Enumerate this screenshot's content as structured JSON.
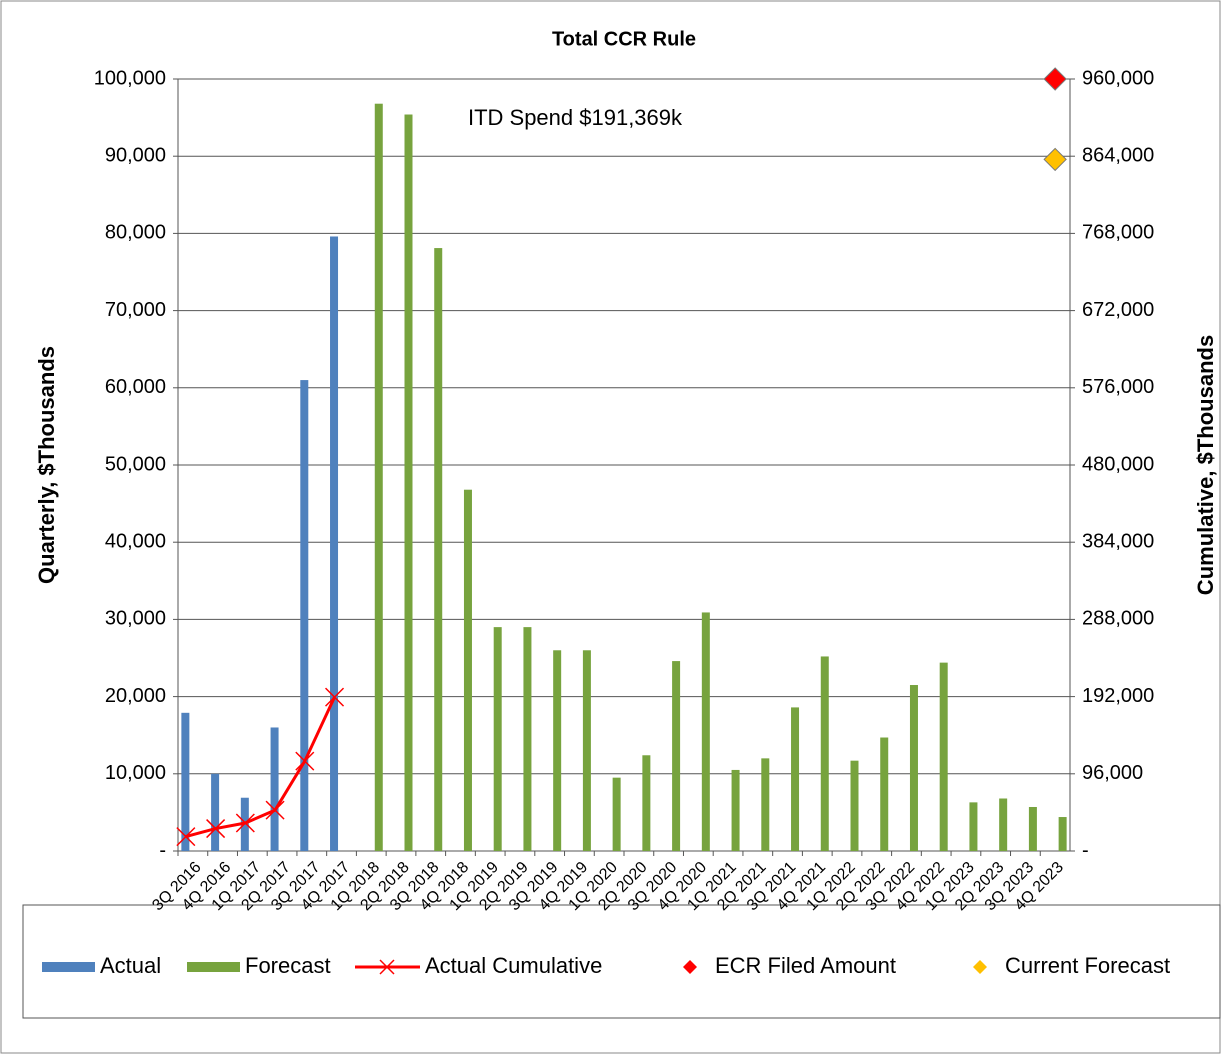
{
  "chart_data": {
    "type": "bar",
    "title": "Total CCR Rule",
    "annotation": "ITD Spend  $191,369k",
    "y_label": "Quarterly, $Thousands",
    "y2_label": "Cumulative, $Thousands",
    "categories": [
      "3Q 2016",
      "4Q 2016",
      "1Q 2017",
      "2Q 2017",
      "3Q 2017",
      "4Q 2017",
      "1Q 2018",
      "2Q 2018",
      "3Q 2018",
      "4Q 2018",
      "1Q 2019",
      "2Q 2019",
      "3Q 2019",
      "4Q 2019",
      "1Q 2020",
      "2Q 2020",
      "3Q 2020",
      "4Q 2020",
      "1Q 2021",
      "2Q 2021",
      "3Q 2021",
      "4Q 2021",
      "1Q 2022",
      "2Q 2022",
      "3Q 2022",
      "4Q 2022",
      "1Q 2023",
      "2Q 2023",
      "3Q 2023",
      "4Q 2023"
    ],
    "series": [
      {
        "name": "Actual",
        "kind": "bar",
        "color": "#4f81bd",
        "values": [
          17900,
          10000,
          6900,
          16000,
          61000,
          79600,
          null,
          null,
          null,
          null,
          null,
          null,
          null,
          null,
          null,
          null,
          null,
          null,
          null,
          null,
          null,
          null,
          null,
          null,
          null,
          null,
          null,
          null,
          null,
          null
        ]
      },
      {
        "name": "Forecast",
        "kind": "bar",
        "color": "#77a33e",
        "values": [
          null,
          null,
          null,
          null,
          null,
          null,
          96800,
          95400,
          78100,
          46800,
          29000,
          29000,
          26000,
          26000,
          9500,
          12400,
          24600,
          30900,
          10500,
          12000,
          18600,
          25200,
          11700,
          14700,
          21500,
          24400,
          6300,
          6800,
          5700,
          4400
        ]
      },
      {
        "name": "Actual Cumulative",
        "kind": "line",
        "axis": "y2",
        "color": "#ff0000",
        "values": [
          17900,
          27900,
          34800,
          50800,
          111800,
          191369,
          null,
          null,
          null,
          null,
          null,
          null,
          null,
          null,
          null,
          null,
          null,
          null,
          null,
          null,
          null,
          null,
          null,
          null,
          null,
          null,
          null,
          null,
          null,
          null
        ]
      },
      {
        "name": "ECR Filed Amount",
        "kind": "diamond",
        "axis": "y2",
        "color": "#ff0000",
        "values": [
          null,
          null,
          null,
          null,
          null,
          null,
          null,
          null,
          null,
          null,
          null,
          null,
          null,
          null,
          null,
          null,
          null,
          null,
          null,
          null,
          null,
          null,
          null,
          null,
          null,
          null,
          null,
          null,
          null,
          960000
        ]
      },
      {
        "name": "Current Forecast",
        "kind": "diamond",
        "axis": "y2",
        "color": "#ffc000",
        "values": [
          null,
          null,
          null,
          null,
          null,
          null,
          null,
          null,
          null,
          null,
          null,
          null,
          null,
          null,
          null,
          null,
          null,
          null,
          null,
          null,
          null,
          null,
          null,
          null,
          null,
          null,
          null,
          null,
          null,
          860000
        ]
      }
    ],
    "ylim": [
      0,
      100000
    ],
    "yticks": [
      {
        "value": 0,
        "label": "-"
      },
      {
        "value": 10000,
        "label": "10,000"
      },
      {
        "value": 20000,
        "label": "20,000"
      },
      {
        "value": 30000,
        "label": "30,000"
      },
      {
        "value": 40000,
        "label": "40,000"
      },
      {
        "value": 50000,
        "label": "50,000"
      },
      {
        "value": 60000,
        "label": "60,000"
      },
      {
        "value": 70000,
        "label": "70,000"
      },
      {
        "value": 80000,
        "label": "80,000"
      },
      {
        "value": 90000,
        "label": "90,000"
      },
      {
        "value": 100000,
        "label": "100,000"
      }
    ],
    "y2lim": [
      0,
      960000
    ],
    "y2ticks": [
      {
        "value": 0,
        "label": "-"
      },
      {
        "value": 96000,
        "label": "96,000"
      },
      {
        "value": 192000,
        "label": "192,000"
      },
      {
        "value": 288000,
        "label": "288,000"
      },
      {
        "value": 384000,
        "label": "384,000"
      },
      {
        "value": 480000,
        "label": "480,000"
      },
      {
        "value": 576000,
        "label": "576,000"
      },
      {
        "value": 672000,
        "label": "672,000"
      },
      {
        "value": 768000,
        "label": "768,000"
      },
      {
        "value": 864000,
        "label": "864,000"
      },
      {
        "value": 960000,
        "label": "960,000"
      }
    ],
    "grid": true,
    "legend": "bottom"
  }
}
